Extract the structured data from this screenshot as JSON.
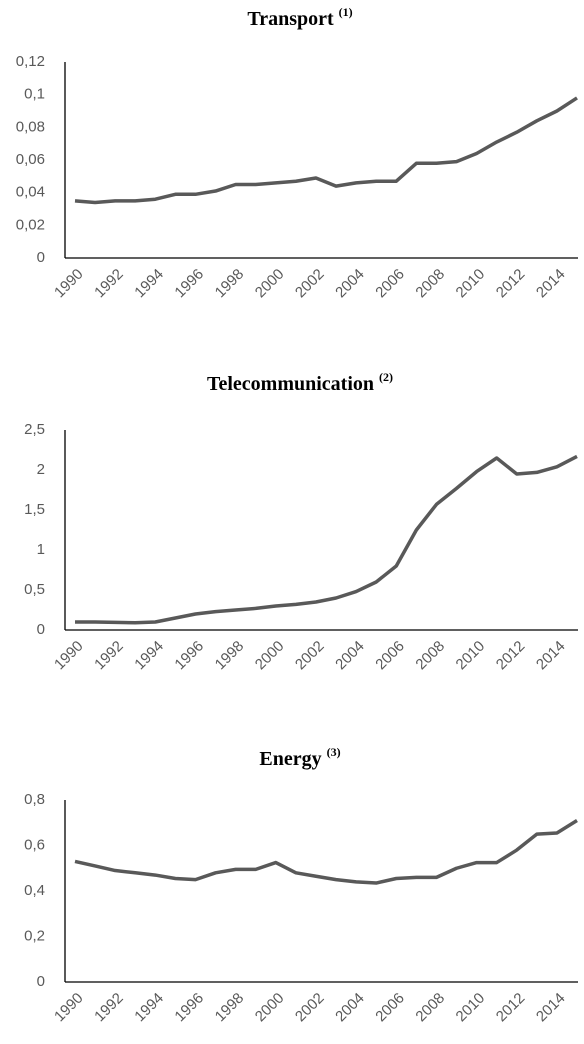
{
  "chart_data": [
    {
      "type": "line",
      "title": "Transport",
      "title_note": "(1)",
      "categories": [
        "1990",
        null,
        "1992",
        null,
        "1994",
        null,
        "1996",
        null,
        "1998",
        null,
        "2000",
        null,
        "2002",
        null,
        "2004",
        null,
        "2006",
        null,
        "2008",
        null,
        "2010",
        null,
        "2012",
        null,
        "2014",
        null
      ],
      "values": [
        0.035,
        0.034,
        0.035,
        0.035,
        0.036,
        0.039,
        0.039,
        0.041,
        0.045,
        0.045,
        0.046,
        0.047,
        0.049,
        0.044,
        0.046,
        0.047,
        0.047,
        0.058,
        0.058,
        0.059,
        0.064,
        0.071,
        0.077,
        0.084,
        0.09,
        0.098
      ],
      "color": "#595959",
      "ylim": [
        0,
        0.12
      ],
      "yticks": [
        0,
        {
          "value": 0.02,
          "label": "0,02"
        },
        {
          "value": 0.04,
          "label": "0,04"
        },
        {
          "value": 0.06,
          "label": "0,06"
        },
        {
          "value": 0.08,
          "label": "0,08"
        },
        {
          "value": 0.1,
          "label": "0,1"
        },
        {
          "value": 0.12,
          "label": "0,12"
        }
      ],
      "grid": false
    },
    {
      "type": "line",
      "title": "Telecommunication",
      "title_note": "(2)",
      "categories": [
        "1990",
        null,
        "1992",
        null,
        "1994",
        null,
        "1996",
        null,
        "1998",
        null,
        "2000",
        null,
        "2002",
        null,
        "2004",
        null,
        "2006",
        null,
        "2008",
        null,
        "2010",
        null,
        "2012",
        null,
        "2014",
        null
      ],
      "values": [
        0.1,
        0.1,
        0.095,
        0.09,
        0.1,
        0.15,
        0.2,
        0.23,
        0.25,
        0.27,
        0.3,
        0.32,
        0.35,
        0.4,
        0.48,
        0.6,
        0.8,
        1.25,
        1.57,
        1.77,
        1.98,
        2.15,
        1.95,
        1.97,
        2.04,
        2.17
      ],
      "color": "#595959",
      "ylim": [
        0,
        2.5
      ],
      "yticks": [
        0,
        {
          "value": 0.5,
          "label": "0,5"
        },
        1,
        {
          "value": 1.5,
          "label": "1,5"
        },
        2,
        {
          "value": 2.5,
          "label": "2,5"
        }
      ],
      "grid": false
    },
    {
      "type": "line",
      "title": "Energy",
      "title_note": "(3)",
      "categories": [
        "1990",
        null,
        "1992",
        null,
        "1994",
        null,
        "1996",
        null,
        "1998",
        null,
        "2000",
        null,
        "2002",
        null,
        "2004",
        null,
        "2006",
        null,
        "2008",
        null,
        "2010",
        null,
        "2012",
        null,
        "2014",
        null
      ],
      "values": [
        0.53,
        0.51,
        0.49,
        0.48,
        0.47,
        0.455,
        0.45,
        0.48,
        0.495,
        0.495,
        0.525,
        0.48,
        0.465,
        0.45,
        0.44,
        0.435,
        0.455,
        0.46,
        0.46,
        0.5,
        0.525,
        0.525,
        0.58,
        0.65,
        0.655,
        0.71
      ],
      "color": "#595959",
      "ylim": [
        0,
        0.8
      ],
      "yticks": [
        0,
        {
          "value": 0.2,
          "label": "0,2"
        },
        {
          "value": 0.4,
          "label": "0,4"
        },
        {
          "value": 0.6,
          "label": "0,6"
        },
        {
          "value": 0.8,
          "label": "0,8"
        }
      ],
      "grid": false
    }
  ]
}
